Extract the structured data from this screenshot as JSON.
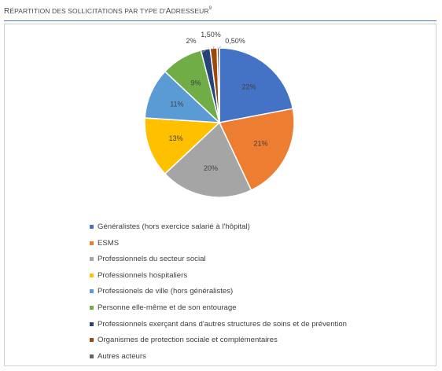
{
  "header": {
    "title_first": "R",
    "title_rest": "ÉPARTITION DES SOLLICITATIONS PAR TYPE D",
    "title_apos": "'",
    "title_a": "A",
    "title_end": "DRESSEUR",
    "footnote": "9"
  },
  "chart_data": {
    "type": "pie",
    "title": "Répartition des sollicitations par type d'adresseur",
    "slices": [
      {
        "label": "Généralistes (hors exercice salarié à l'hôpital)",
        "value": 22,
        "data_label": "22%",
        "color": "#4472c4"
      },
      {
        "label": "ESMS",
        "value": 21,
        "data_label": "21%",
        "color": "#ed7d31"
      },
      {
        "label": "Professionnels du secteur social",
        "value": 20,
        "data_label": "20%",
        "color": "#a5a5a5"
      },
      {
        "label": "Professionnels hospitaliers",
        "value": 13,
        "data_label": "13%",
        "color": "#ffc000"
      },
      {
        "label": "Professionels de ville (hors généralistes)",
        "value": 11,
        "data_label": "11%",
        "color": "#5b9bd5"
      },
      {
        "label": "Personne elle-même et de son entourage",
        "value": 9,
        "data_label": "9%",
        "color": "#70ad47"
      },
      {
        "label": "Professionnels exerçant dans d'autres structures de soins et de prévention",
        "value": 2,
        "data_label": "2%",
        "color": "#264478"
      },
      {
        "label": "Organismes de protection sociale et complémentaires",
        "value": 1.5,
        "data_label": "1,50%",
        "color": "#9e480e"
      },
      {
        "label": "Autres acteurs",
        "value": 0.5,
        "data_label": "0,50%",
        "color": "#636363"
      }
    ],
    "legend_position": "bottom"
  }
}
